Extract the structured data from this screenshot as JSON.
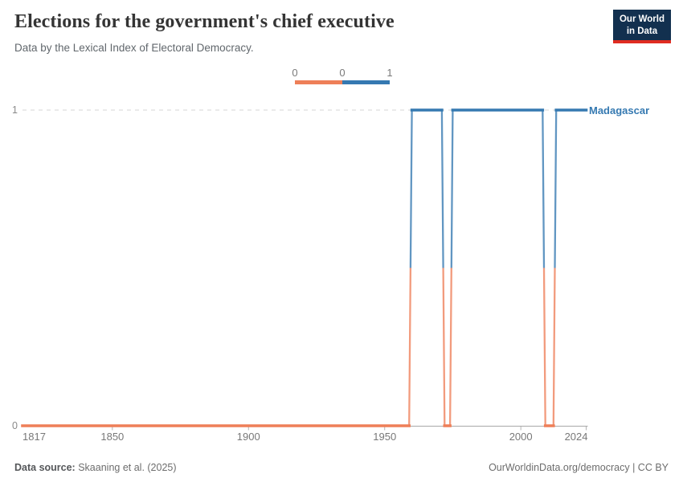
{
  "header": {
    "title": "Elections for the government's chief executive",
    "subtitle": "Data by the Lexical Index of Electoral Democracy.",
    "logo": {
      "line1": "Our World",
      "line2": "in Data"
    }
  },
  "legend": {
    "tick_labels": [
      "0",
      "0",
      "1"
    ],
    "bins": [
      {
        "color": "#ee7f58",
        "range": [
          0,
          0
        ]
      },
      {
        "color": "#3579b1",
        "range": [
          0,
          1
        ]
      }
    ]
  },
  "chart_data": {
    "type": "line",
    "style": "step-with-year-markers",
    "title": "Elections for the government's chief executive",
    "subtitle": "Data by the Lexical Index of Electoral Democracy.",
    "entity": "Madagascar",
    "entity_color": "#3579b1",
    "x_range": [
      1817,
      2024
    ],
    "ylim": [
      0,
      1
    ],
    "x_ticks": [
      1817,
      1850,
      1900,
      1950,
      2000,
      2024
    ],
    "y_ticks": [
      0,
      1
    ],
    "gridlines_y": [
      1
    ],
    "legend_position": "top-center",
    "value_colors": {
      "0": "#ee7f58",
      "1": "#3579b1"
    },
    "series": [
      {
        "name": "Madagascar",
        "segments": [
          {
            "from": 1817,
            "to": 1959,
            "value": 0
          },
          {
            "from": 1960,
            "to": 1971,
            "value": 1
          },
          {
            "from": 1972,
            "to": 1974,
            "value": 0
          },
          {
            "from": 1975,
            "to": 2008,
            "value": 1
          },
          {
            "from": 2009,
            "to": 2012,
            "value": 0
          },
          {
            "from": 2013,
            "to": 2024,
            "value": 1
          }
        ]
      }
    ]
  },
  "footer": {
    "source_label": "Data source:",
    "source_value": "Skaaning et al. (2025)",
    "link": "OurWorldinData.org/democracy | CC BY"
  }
}
